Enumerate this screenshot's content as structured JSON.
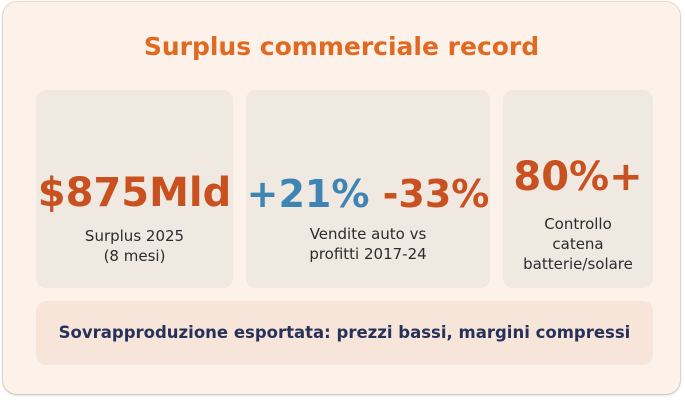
{
  "title": "Surplus commerciale record",
  "stats": [
    {
      "value": "$875Mld",
      "caption_lines": [
        "Surplus 2025",
        "(8 mesi)"
      ]
    },
    {
      "value_positive": "+21%",
      "value_negative": "-33%",
      "caption_lines": [
        "Vendite auto vs",
        "profitti 2017-24"
      ]
    },
    {
      "value": "80%+",
      "caption_lines": [
        "Controllo",
        "catena",
        "batterie/solare"
      ]
    }
  ],
  "banner": "Sovrapproduzione esportata: prezzi bassi, margini compressi",
  "colors": {
    "accent_orange": "#e06a22",
    "value_rust": "#c9511f",
    "value_blue": "#3f85b4",
    "banner_text": "#26325a"
  }
}
